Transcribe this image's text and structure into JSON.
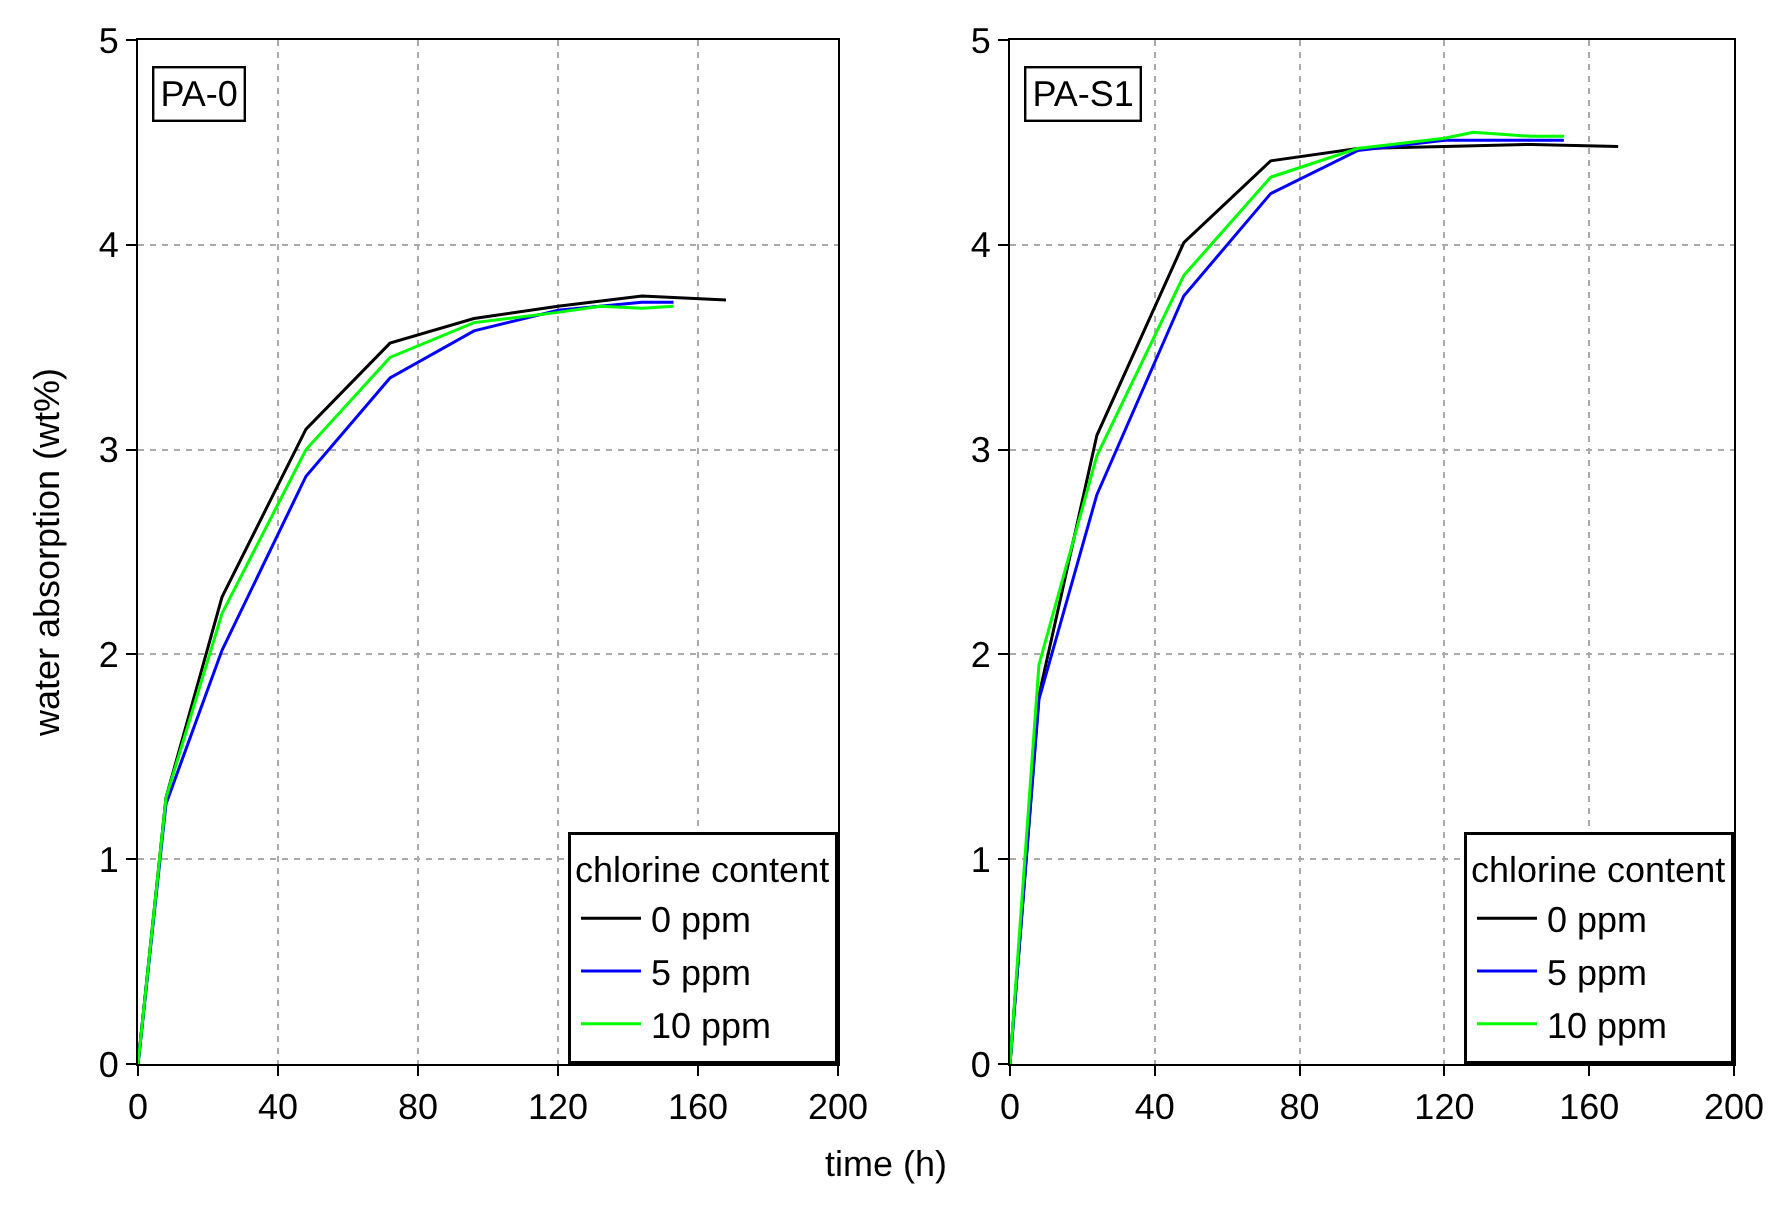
{
  "chart_data": [
    {
      "type": "line",
      "title": "PA-0",
      "xlabel": "time (h)",
      "ylabel": "water absorption (wt%)",
      "legend_title": "chlorine content",
      "legend": "bottom right",
      "grid": true,
      "line_style": "solid",
      "xlim": [
        0,
        200
      ],
      "xticks": [
        0,
        40,
        80,
        120,
        160,
        200
      ],
      "ylim": [
        0,
        5
      ],
      "yticks": [
        0,
        1,
        2,
        3,
        4,
        5
      ],
      "series": [
        {
          "name": "0 ppm",
          "color": "#000000",
          "x": [
            0,
            8,
            24,
            48,
            72,
            96,
            120,
            144,
            168
          ],
          "values": [
            0,
            1.3,
            2.28,
            3.1,
            3.52,
            3.64,
            3.7,
            3.75,
            3.73
          ]
        },
        {
          "name": "5 ppm",
          "color": "#0000ff",
          "x": [
            0,
            8,
            24,
            48,
            72,
            96,
            120,
            144,
            153
          ],
          "values": [
            0,
            1.27,
            2.02,
            2.87,
            3.35,
            3.58,
            3.68,
            3.72,
            3.72
          ]
        },
        {
          "name": "10 ppm",
          "color": "#00ff00",
          "x": [
            0,
            8,
            24,
            48,
            72,
            96,
            120,
            132,
            144,
            153
          ],
          "values": [
            0,
            1.3,
            2.2,
            3.0,
            3.45,
            3.62,
            3.67,
            3.7,
            3.69,
            3.7
          ]
        }
      ]
    },
    {
      "type": "line",
      "title": "PA-S1",
      "legend_title": "chlorine content",
      "legend": "bottom right",
      "grid": true,
      "line_style": "solid",
      "xlim": [
        0,
        200
      ],
      "xticks": [
        0,
        40,
        80,
        120,
        160,
        200
      ],
      "ylim": [
        0,
        5
      ],
      "yticks": [
        0,
        1,
        2,
        3,
        4,
        5
      ],
      "series": [
        {
          "name": "0 ppm",
          "color": "#000000",
          "x": [
            0,
            8,
            24,
            48,
            72,
            96,
            120,
            144,
            168
          ],
          "values": [
            0,
            1.8,
            3.07,
            4.01,
            4.41,
            4.47,
            4.48,
            4.49,
            4.48
          ]
        },
        {
          "name": "5 ppm",
          "color": "#0000ff",
          "x": [
            0,
            8,
            24,
            48,
            72,
            96,
            120,
            144,
            153
          ],
          "values": [
            0,
            1.78,
            2.78,
            3.75,
            4.25,
            4.46,
            4.51,
            4.51,
            4.51
          ]
        },
        {
          "name": "10 ppm",
          "color": "#00ff00",
          "x": [
            0,
            8,
            24,
            48,
            72,
            96,
            120,
            128,
            144,
            153
          ],
          "values": [
            0,
            1.95,
            2.97,
            3.85,
            4.33,
            4.47,
            4.52,
            4.55,
            4.53,
            4.53
          ]
        }
      ]
    }
  ]
}
